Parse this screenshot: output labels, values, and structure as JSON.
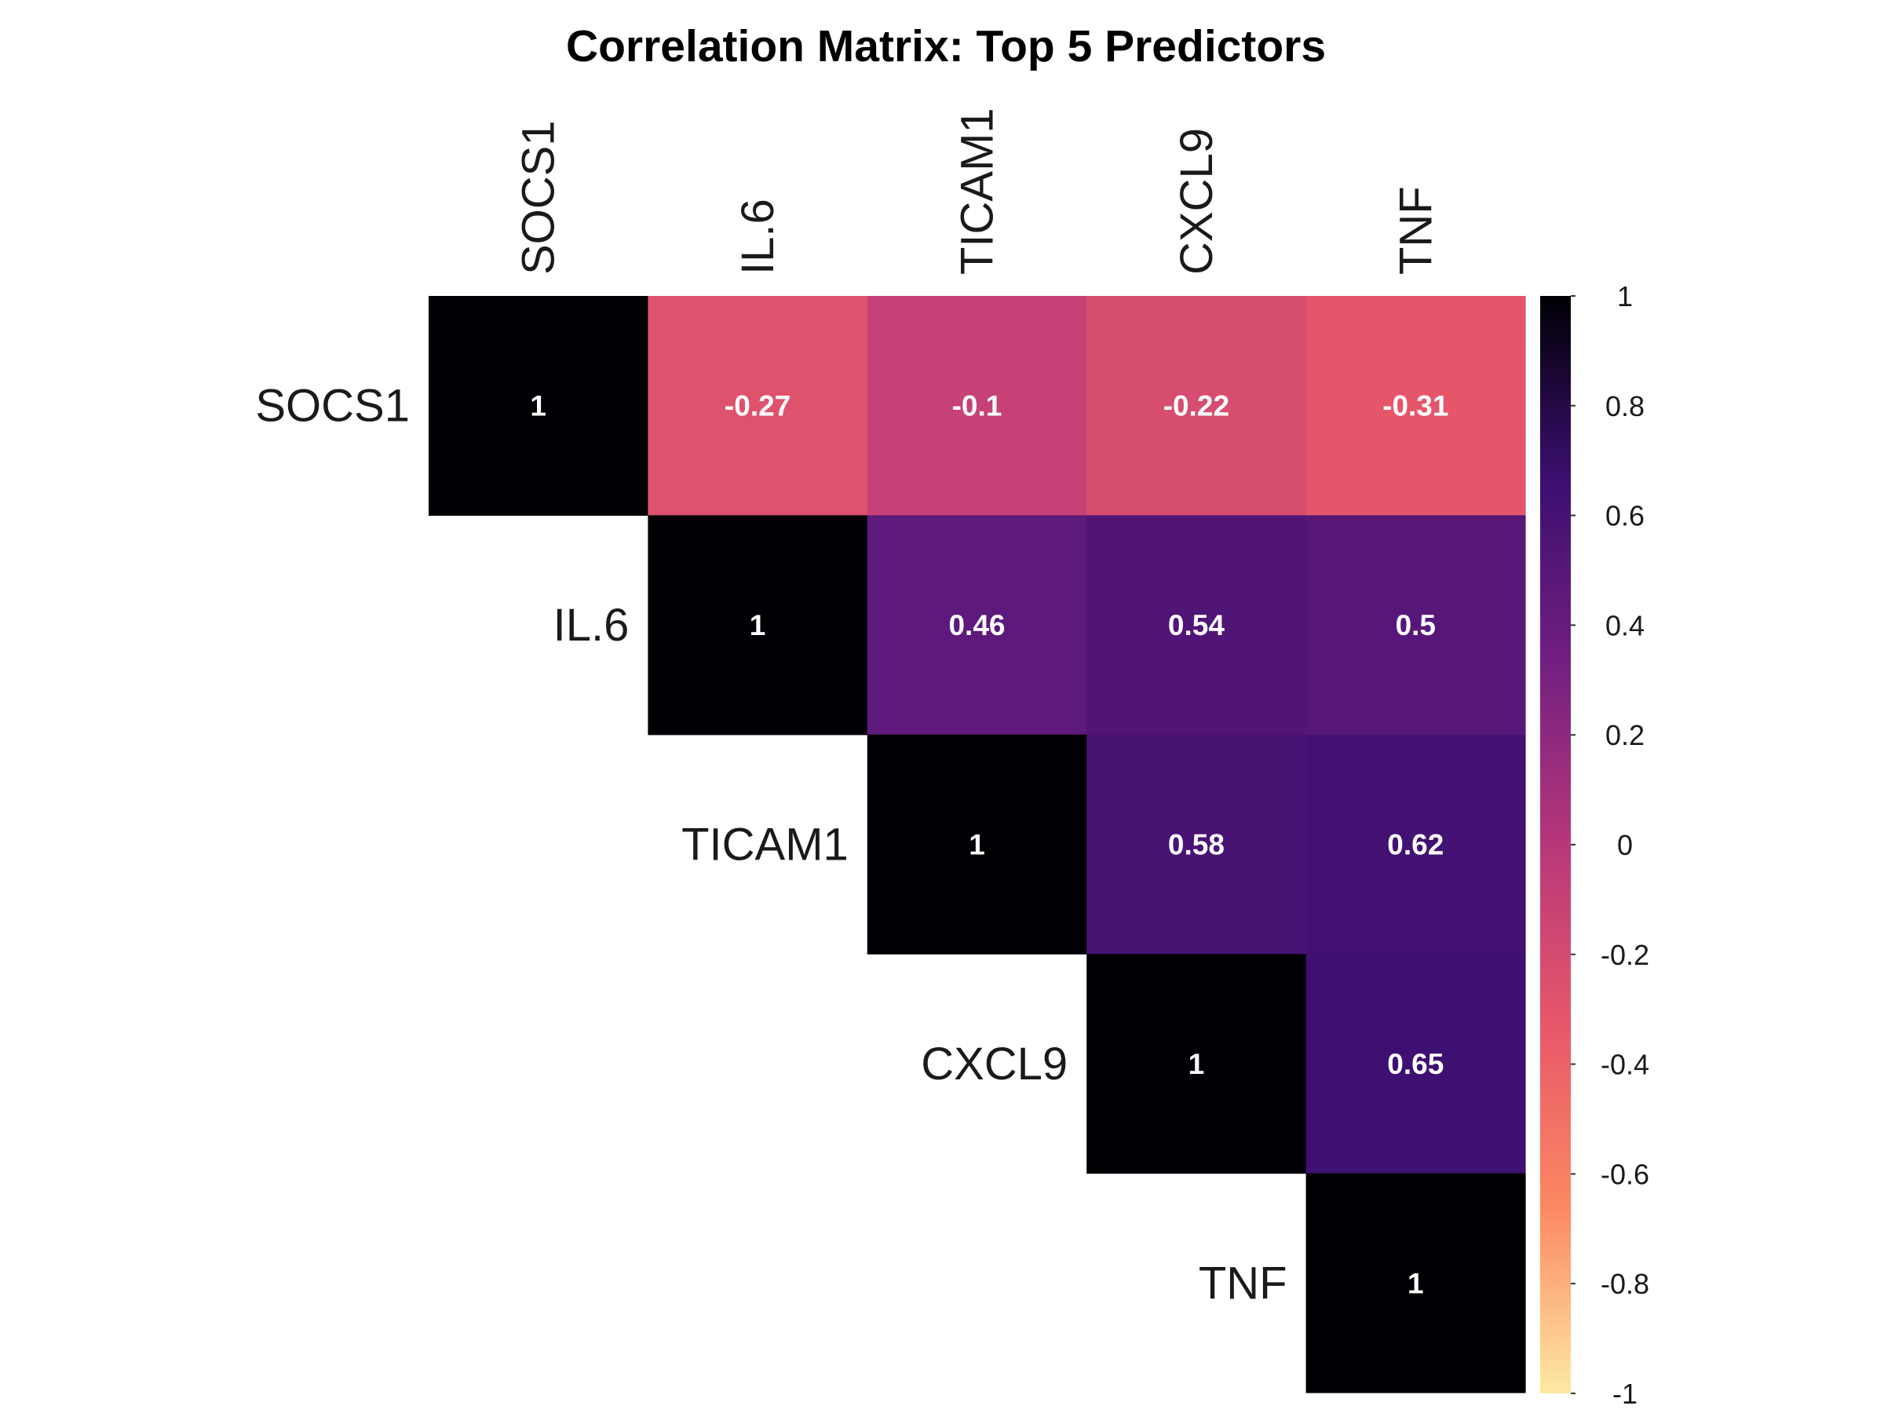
{
  "chart_data": {
    "type": "heatmap",
    "title": "Correlation Matrix: Top 5 Predictors",
    "variables": [
      "SOCS1",
      "IL.6",
      "TICAM1",
      "CXCL9",
      "TNF"
    ],
    "layout": "upper-triangle",
    "matrix": [
      [
        1,
        -0.27,
        -0.1,
        -0.22,
        -0.31
      ],
      [
        null,
        1,
        0.46,
        0.54,
        0.5
      ],
      [
        null,
        null,
        1,
        0.58,
        0.62
      ],
      [
        null,
        null,
        null,
        1,
        0.65
      ],
      [
        null,
        null,
        null,
        null,
        1
      ]
    ],
    "cell_labels": [
      [
        "1",
        "-0.27",
        "-0.1",
        "-0.22",
        "-0.31"
      ],
      [
        null,
        "1",
        "0.46",
        "0.54",
        "0.5"
      ],
      [
        null,
        null,
        "1",
        "0.58",
        "0.62"
      ],
      [
        null,
        null,
        null,
        "1",
        "0.65"
      ],
      [
        null,
        null,
        null,
        null,
        "1"
      ]
    ],
    "colorbar": {
      "range": [
        -1,
        1
      ],
      "ticks": [
        1,
        0.8,
        0.6,
        0.4,
        0.2,
        0,
        -0.2,
        -0.4,
        -0.6,
        -0.8,
        -1
      ],
      "tick_labels": [
        "1",
        "0.8",
        "0.6",
        "0.4",
        "0.2",
        "0",
        "-0.2",
        "-0.4",
        "-0.6",
        "-0.8",
        "-1"
      ],
      "colormap": "magma",
      "stops": [
        "#fde9a3",
        "#fc8961",
        "#e8586a",
        "#b73779",
        "#721f81",
        "#3b0f70",
        "#000004"
      ]
    },
    "legend": "right"
  }
}
